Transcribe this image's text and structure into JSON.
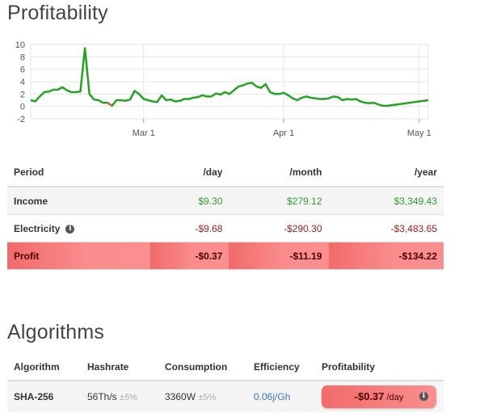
{
  "profitability": {
    "title": "Profitability",
    "columns": [
      "Period",
      "/day",
      "/month",
      "/year"
    ],
    "rows": [
      {
        "label": "Income",
        "day": "$9.30",
        "month": "$279.12",
        "year": "$3,349.43"
      },
      {
        "label": "Electricity",
        "day": "-$9.68",
        "month": "-$290.30",
        "year": "-$3,483.65"
      },
      {
        "label": "Profit",
        "day": "-$0.37",
        "month": "-$11.19",
        "year": "-$134.22"
      }
    ]
  },
  "chart_data": {
    "type": "line",
    "title": "",
    "xlabel": "",
    "ylabel": "",
    "ylim": [
      -2,
      10
    ],
    "yticks": [
      10,
      8,
      6,
      4,
      2,
      0,
      -2
    ],
    "x_tick_labels": [
      "Mar 1",
      "Apr 1",
      "May 1"
    ],
    "grid": true,
    "legend": "none",
    "series": [
      {
        "color": "#22a322",
        "x": [
          "Feb 4",
          "Feb 5",
          "Feb 6",
          "Feb 7",
          "Feb 8",
          "Feb 9",
          "Feb 10",
          "Feb 11",
          "Feb 12",
          "Feb 13",
          "Feb 14",
          "Feb 15",
          "Feb 16",
          "Feb 17",
          "Feb 18",
          "Feb 19",
          "Feb 20",
          "Feb 21",
          "Feb 22",
          "Feb 23",
          "Feb 24",
          "Feb 25",
          "Feb 26",
          "Feb 27",
          "Feb 28",
          "Mar 1",
          "Mar 2",
          "Mar 3",
          "Mar 4",
          "Mar 5",
          "Mar 6",
          "Mar 7",
          "Mar 8",
          "Mar 9",
          "Mar 10",
          "Mar 11",
          "Mar 12",
          "Mar 13",
          "Mar 14",
          "Mar 15",
          "Mar 16",
          "Mar 17",
          "Mar 18",
          "Mar 19",
          "Mar 20",
          "Mar 21",
          "Mar 22",
          "Mar 23",
          "Mar 24",
          "Mar 25",
          "Mar 26",
          "Mar 27",
          "Mar 28",
          "Mar 29",
          "Mar 30",
          "Mar 31",
          "Apr 1",
          "Apr 2",
          "Apr 3",
          "Apr 4",
          "Apr 5",
          "Apr 6",
          "Apr 7",
          "Apr 8",
          "Apr 9",
          "Apr 10",
          "Apr 11",
          "Apr 12",
          "Apr 13",
          "Apr 14",
          "Apr 15",
          "Apr 16",
          "Apr 17",
          "Apr 18",
          "Apr 19",
          "Apr 20",
          "Apr 21",
          "Apr 22",
          "Apr 23",
          "Apr 24",
          "Apr 25",
          "Apr 26",
          "Apr 27",
          "Apr 28",
          "Apr 29",
          "Apr 30",
          "May 1",
          "May 2",
          "May 3"
        ],
        "values": [
          1.0,
          0.8,
          1.6,
          2.3,
          2.4,
          2.7,
          2.7,
          3.1,
          2.6,
          2.3,
          2.3,
          2.4,
          9.4,
          2.0,
          1.1,
          1.0,
          0.6,
          0.6,
          0.1,
          1.0,
          1.0,
          0.9,
          1.1,
          2.5,
          2.0,
          1.2,
          1.0,
          0.8,
          0.7,
          1.8,
          1.0,
          1.1,
          0.8,
          0.9,
          1.2,
          1.2,
          1.4,
          1.5,
          1.8,
          1.6,
          1.6,
          2.1,
          1.9,
          2.3,
          2.0,
          2.6,
          3.2,
          3.4,
          3.7,
          3.8,
          3.2,
          3.0,
          3.6,
          2.3,
          2.0,
          2.0,
          2.2,
          1.8,
          1.3,
          1.0,
          1.4,
          1.6,
          1.4,
          1.3,
          1.2,
          1.2,
          1.3,
          1.6,
          1.5,
          1.0,
          1.2,
          1.1,
          1.2,
          0.8,
          0.6,
          0.5,
          0.6,
          0.3,
          0.1,
          0.1,
          0.2,
          0.3,
          0.4,
          0.5,
          0.6,
          0.7,
          0.8,
          0.9,
          1.0
        ]
      }
    ]
  },
  "algorithms": {
    "title": "Algorithms",
    "columns": [
      "Algorithm",
      "Hashrate",
      "Consumption",
      "Efficiency",
      "Profitability"
    ],
    "rows": [
      {
        "algorithm": "SHA-256",
        "hashrate": "56Th/s",
        "hashrate_tol": "±5%",
        "consumption": "3360W",
        "consumption_tol": "±5%",
        "efficiency": "0.06j/Gh",
        "profit": "-$0.37",
        "profit_unit": "/day"
      }
    ]
  },
  "icons": {
    "info": "info-icon"
  },
  "colors": {
    "line": "#22a322",
    "negative_line": "#d9534f",
    "income": "#2e9b2e",
    "expense": "#a21d1d",
    "profit_bg": "#f26a6a"
  }
}
